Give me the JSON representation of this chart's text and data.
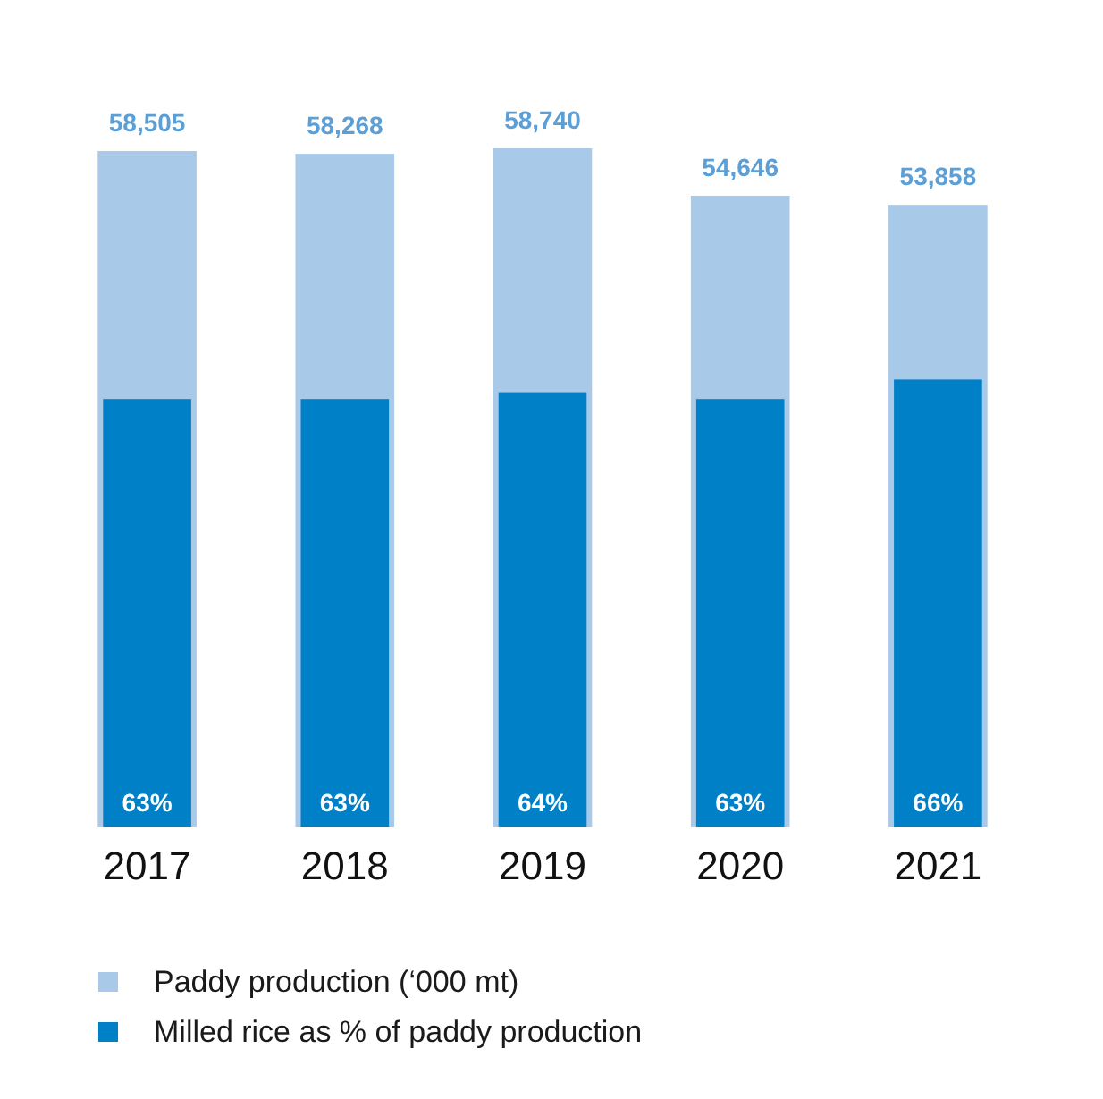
{
  "chart_data": {
    "type": "bar",
    "categories": [
      "2017",
      "2018",
      "2019",
      "2020",
      "2021"
    ],
    "series": [
      {
        "name": "Paddy production (‘000 mt)",
        "color": "#a9c9e8",
        "values": [
          58505,
          58268,
          58740,
          54646,
          53858
        ],
        "value_labels": [
          "58,505",
          "58,268",
          "58,740",
          "54,646",
          "53,858"
        ]
      },
      {
        "name": "Milled rice as % of paddy production",
        "color": "#0080c6",
        "axis": "y2",
        "values": [
          63,
          63,
          64,
          63,
          66
        ],
        "value_labels": [
          "63%",
          "63%",
          "64%",
          "63%",
          "66%"
        ]
      }
    ],
    "y2lim": [
      0,
      100
    ],
    "legend": "bottom"
  }
}
